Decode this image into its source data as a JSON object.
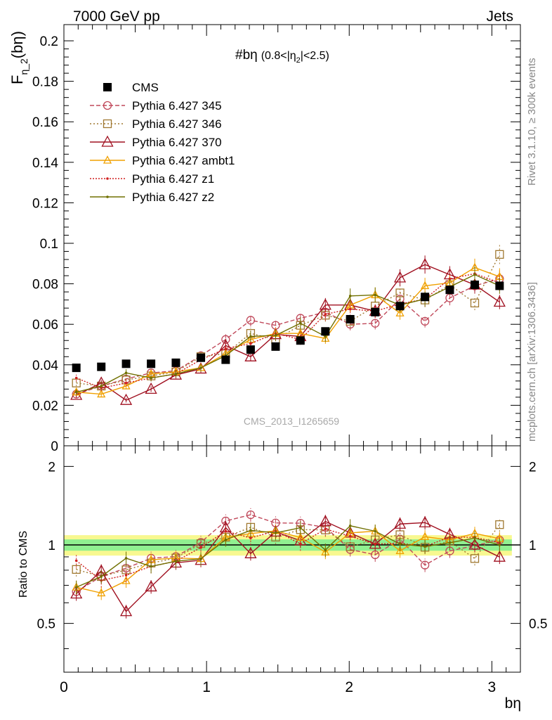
{
  "header": {
    "left": "7000 GeV pp",
    "right": "Jets"
  },
  "side_labels": {
    "rivet": "Rivet 3.1.10, ≥ 300k events",
    "mcplots": "mcplots.cern.ch [arXiv:1306.3436]"
  },
  "watermark": "CMS_2013_I1265659",
  "colors": {
    "CMS": "#000000",
    "p345": "#c0485a",
    "p346": "#a07830",
    "p370": "#a01020",
    "ambt1": "#f0a000",
    "z1": "#d02020",
    "z2": "#707000",
    "band_inner": "#90f090",
    "band_outer": "#f8f890"
  },
  "chart_data": [
    {
      "type": "scatter",
      "panel": "main",
      "title_main": "#bη",
      "title_sub": "(0.8<|η",
      "title_sub_index": "2",
      "title_sub_end": "|<2.5)",
      "ylabel_main": "F",
      "ylabel_sub": "η_2",
      "ylabel_end": "(bη)",
      "xlim": [
        0,
        3.2
      ],
      "ylim": [
        0,
        0.208
      ],
      "y_ticks": [
        "0",
        "0.02",
        "0.04",
        "0.06",
        "0.08",
        "0.1",
        "0.12",
        "0.14",
        "0.16",
        "0.18",
        "0.2"
      ],
      "x": [
        0.087,
        0.262,
        0.436,
        0.611,
        0.785,
        0.96,
        1.134,
        1.309,
        1.484,
        1.658,
        1.833,
        2.007,
        2.182,
        2.356,
        2.531,
        2.705,
        2.88,
        3.054
      ],
      "legend_position": "top-left",
      "series": [
        {
          "key": "CMS",
          "name": "CMS",
          "marker": "square-filled",
          "values": [
            0.0385,
            0.039,
            0.0405,
            0.0405,
            0.041,
            0.0435,
            0.0425,
            0.0475,
            0.049,
            0.052,
            0.0565,
            0.0625,
            0.066,
            0.069,
            0.0735,
            0.077,
            0.0795,
            0.079
          ]
        },
        {
          "key": "p345",
          "name": "Pythia 6.427 345",
          "marker": "circle-open",
          "dash": "6,3",
          "values": [
            0.0255,
            0.0295,
            0.033,
            0.036,
            0.037,
            0.0445,
            0.0525,
            0.062,
            0.0595,
            0.063,
            0.066,
            0.06,
            0.0605,
            0.0725,
            0.0615,
            0.073,
            0.079,
            0.0825
          ]
        },
        {
          "key": "p346",
          "name": "Pythia 6.427 346",
          "marker": "square-open",
          "dash": "2,3",
          "values": [
            0.031,
            0.0295,
            0.0325,
            0.0345,
            0.0365,
            0.044,
            0.0455,
            0.0555,
            0.0525,
            0.0595,
            0.0645,
            0.0615,
            0.069,
            0.0755,
            0.072,
            0.0795,
            0.0705,
            0.0945
          ]
        },
        {
          "key": "p370",
          "name": "Pythia 6.427 370",
          "marker": "triangle-open",
          "dash": "",
          "values": [
            0.025,
            0.031,
            0.0225,
            0.028,
            0.035,
            0.038,
            0.0495,
            0.044,
            0.055,
            0.054,
            0.0695,
            0.0695,
            0.0665,
            0.083,
            0.0895,
            0.0845,
            0.0795,
            0.071
          ]
        },
        {
          "key": "ambt1",
          "name": "Pythia 6.427 ambt1",
          "marker": "triangle-small",
          "dash": "",
          "values": [
            0.0265,
            0.0255,
            0.0295,
            0.0355,
            0.0365,
            0.0385,
            0.0455,
            0.0525,
            0.0555,
            0.0555,
            0.053,
            0.0695,
            0.0745,
            0.0655,
            0.079,
            0.0805,
            0.088,
            0.0835
          ]
        },
        {
          "key": "z1",
          "name": "Pythia 6.427 z1",
          "marker": "dot",
          "dash": "2,2",
          "values": [
            0.0335,
            0.0285,
            0.031,
            0.0335,
            0.0355,
            0.0425,
            0.048,
            0.0505,
            0.0555,
            0.0525,
            0.065,
            0.0675,
            0.0665,
            0.07,
            0.0725,
            0.0825,
            0.085,
            0.0805
          ]
        },
        {
          "key": "z2",
          "name": "Pythia 6.427 z2",
          "marker": "dot",
          "dash": "",
          "values": [
            0.0265,
            0.0295,
            0.036,
            0.0335,
            0.0355,
            0.0385,
            0.0445,
            0.054,
            0.0545,
            0.0605,
            0.054,
            0.074,
            0.0745,
            0.0695,
            0.0725,
            0.0785,
            0.0845,
            0.079
          ]
        }
      ]
    },
    {
      "type": "scatter",
      "panel": "ratio",
      "ylabel": "Ratio to CMS",
      "xlabel": "bη",
      "xlim": [
        0,
        3.2
      ],
      "ylim": [
        0.325,
        2.4
      ],
      "y_ticks": [
        "0.5",
        "1",
        "2"
      ],
      "x_ticks": [
        "0",
        "1",
        "2",
        "3"
      ],
      "note": "ratio of each Pythia series to CMS; band = CMS uncertainty",
      "band_inner": [
        0.95,
        1.05
      ],
      "band_outer": [
        0.91,
        1.09
      ]
    }
  ]
}
